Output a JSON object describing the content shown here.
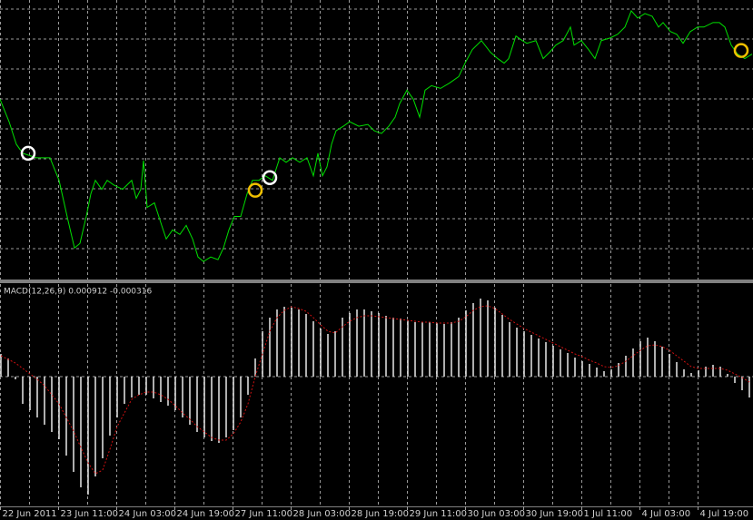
{
  "chart_data": [
    {
      "type": "line",
      "color": "#00e000",
      "x": [
        0,
        2.5,
        4.5,
        6.25,
        10,
        13.75,
        16.25,
        18.75,
        20.5,
        22,
        23.75,
        25,
        26.25,
        28,
        29.5,
        31.25,
        33.75,
        36.25,
        37.5,
        38.75,
        39.5,
        40.5,
        42.5,
        44.5,
        45.75,
        47.5,
        49.5,
        51.25,
        53,
        54.5,
        56,
        58,
        60,
        61.5,
        63,
        64.5,
        66.25,
        68,
        69.5,
        71.25,
        73,
        75,
        77,
        78.75,
        80.5,
        82.5,
        84.5,
        86.25,
        87.5,
        88.75,
        90,
        91.25,
        92.5,
        94.5,
        96.25,
        98.75,
        101.25,
        103,
        105,
        107,
        108.75,
        110,
        112,
        113.75,
        115.5,
        117,
        118.75,
        121.25,
        123.75,
        126.25,
        128,
        130,
        132.5,
        135,
        137,
        138.75,
        140,
        142,
        143.75,
        145,
        147.5,
        149.5,
        151.25,
        153,
        155,
        157,
        158,
        160,
        162,
        163.75,
        165.5,
        168,
        170,
        172,
        173.75,
        175.5,
        177.5,
        179.5,
        181.25,
        182.5,
        184.5,
        186.25,
        188,
        190,
        192,
        193.75,
        196.25,
        198,
        199.5,
        201.25,
        203,
        205,
        207
      ],
      "values": [
        200,
        175,
        150,
        140,
        135,
        135,
        110,
        65,
        35,
        40,
        70,
        95,
        110,
        100,
        110,
        105,
        100,
        110,
        90,
        100,
        132,
        80,
        85,
        60,
        45,
        55,
        50,
        60,
        45,
        25,
        20,
        25,
        22,
        35,
        55,
        70,
        70,
        95,
        110,
        110,
        115,
        110,
        135,
        130,
        135,
        130,
        135,
        115,
        140,
        115,
        125,
        150,
        165,
        170,
        175,
        170,
        172,
        165,
        162,
        170,
        180,
        195,
        210,
        200,
        180,
        210,
        215,
        212,
        218,
        225,
        240,
        255,
        265,
        252,
        245,
        240,
        245,
        270,
        265,
        262,
        265,
        245,
        252,
        260,
        265,
        280,
        260,
        265,
        255,
        245,
        265,
        268,
        272,
        280,
        298,
        290,
        295,
        292,
        280,
        285,
        275,
        272,
        262,
        275,
        280,
        280,
        285,
        285,
        280,
        260,
        250,
        245,
        250
      ],
      "markers": [
        {
          "x": 7.75,
          "y": 140,
          "color": "#ffffff"
        },
        {
          "x": 70.25,
          "y": 99,
          "color": "#f0c000"
        },
        {
          "x": 74.25,
          "y": 113,
          "color": "#ffffff"
        },
        {
          "x": 204,
          "y": 254,
          "color": "#f0c000"
        }
      ],
      "xlim": [
        0,
        207.25
      ],
      "ylim": [
        0,
        310
      ]
    },
    {
      "type": "macd",
      "title": "MACD(12,26,9) 0.000912 -0.000316",
      "x": [
        0,
        2,
        4,
        6,
        8,
        10,
        12,
        14,
        16,
        18,
        20,
        22,
        24,
        26,
        28,
        30,
        32,
        34,
        36,
        38,
        40,
        42,
        44,
        46,
        48,
        50,
        52,
        54,
        56,
        58,
        60,
        62,
        64,
        66,
        68,
        70,
        72,
        74,
        76,
        78,
        80,
        82,
        84,
        86,
        88,
        90,
        92,
        94,
        96,
        98,
        100,
        102,
        104,
        106,
        108,
        110,
        112,
        114,
        116,
        118,
        120,
        122,
        124,
        126,
        128,
        130,
        132,
        134,
        136,
        138,
        140,
        142,
        144,
        146,
        148,
        150,
        152,
        154,
        156,
        158,
        160,
        162,
        164,
        166,
        168,
        170,
        172,
        174,
        176,
        178,
        180,
        182,
        184,
        186,
        188,
        190,
        192,
        194,
        196,
        198,
        200,
        202,
        204,
        206
      ],
      "series": [
        {
          "color": "#e8e8e8",
          "values": [
            25,
            20,
            -3,
            -30,
            -37,
            -45,
            -53,
            -61,
            -69,
            -87,
            -105,
            -122,
            -130,
            -110,
            -90,
            -65,
            -45,
            -30,
            -23,
            -20,
            -20,
            -24,
            -28,
            -32,
            -37,
            -45,
            -53,
            -61,
            -67,
            -71,
            -73,
            -67,
            -59,
            -45,
            -20,
            20,
            50,
            65,
            74,
            77,
            76,
            74,
            69,
            61,
            53,
            47,
            50,
            65,
            70,
            74,
            74,
            72,
            70,
            67,
            65,
            64,
            62,
            60,
            60,
            60,
            59,
            58,
            60,
            65,
            73,
            81,
            86,
            84,
            76,
            68,
            60,
            54,
            50,
            46,
            42,
            38,
            34,
            30,
            26,
            21,
            17,
            14,
            10,
            6,
            8,
            15,
            23,
            31,
            39,
            43,
            39,
            33,
            25,
            16,
            8,
            4,
            7,
            11,
            13,
            11,
            3,
            -7,
            -15,
            -23
          ]
        },
        {
          "color": "#d01010",
          "values": [
            23,
            19,
            15,
            9,
            3,
            -3,
            -10,
            -20,
            -30,
            -45,
            -60,
            -78,
            -95,
            -107,
            -103,
            -80,
            -55,
            -40,
            -25,
            -20,
            -17,
            -17,
            -20,
            -25,
            -32,
            -40,
            -47,
            -55,
            -61,
            -67,
            -70,
            -70,
            -63,
            -50,
            -30,
            0,
            25,
            50,
            65,
            73,
            77,
            75,
            72,
            65,
            57,
            50,
            48,
            55,
            61,
            65,
            67,
            67,
            66,
            65,
            64,
            63,
            62,
            61,
            60,
            60,
            59,
            59,
            59,
            61,
            66,
            73,
            77,
            78,
            75,
            69,
            63,
            58,
            53,
            49,
            45,
            41,
            37,
            33,
            29,
            25,
            22,
            18,
            15,
            11,
            10,
            12,
            17,
            23,
            29,
            34,
            35,
            33,
            29,
            23,
            17,
            11,
            9,
            9,
            9,
            9,
            7,
            3,
            -1,
            -6
          ]
        }
      ],
      "xlim": [
        0,
        207.25
      ],
      "ylim": [
        -143,
        102
      ],
      "xticks": [
        {
          "value": 0,
          "label": "22 Jun 2011"
        },
        {
          "value": 16,
          "label": "23 Jun 11:00"
        },
        {
          "value": 32,
          "label": "24 Jun 03:00"
        },
        {
          "value": 48,
          "label": "24 Jun 19:00"
        },
        {
          "value": 64,
          "label": "27 Jun 11:00"
        },
        {
          "value": 80,
          "label": "28 Jun 03:00"
        },
        {
          "value": 96,
          "label": "28 Jun 19:00"
        },
        {
          "value": 112,
          "label": "29 Jun 11:00"
        },
        {
          "value": 128,
          "label": "30 Jun 03:00"
        },
        {
          "value": 144,
          "label": "30 Jun 19:00"
        },
        {
          "value": 160,
          "label": "1 Jul 11:00"
        },
        {
          "value": 176,
          "label": "4 Jul 03:00"
        },
        {
          "value": 192,
          "label": "4 Jul 19:00"
        }
      ]
    }
  ]
}
